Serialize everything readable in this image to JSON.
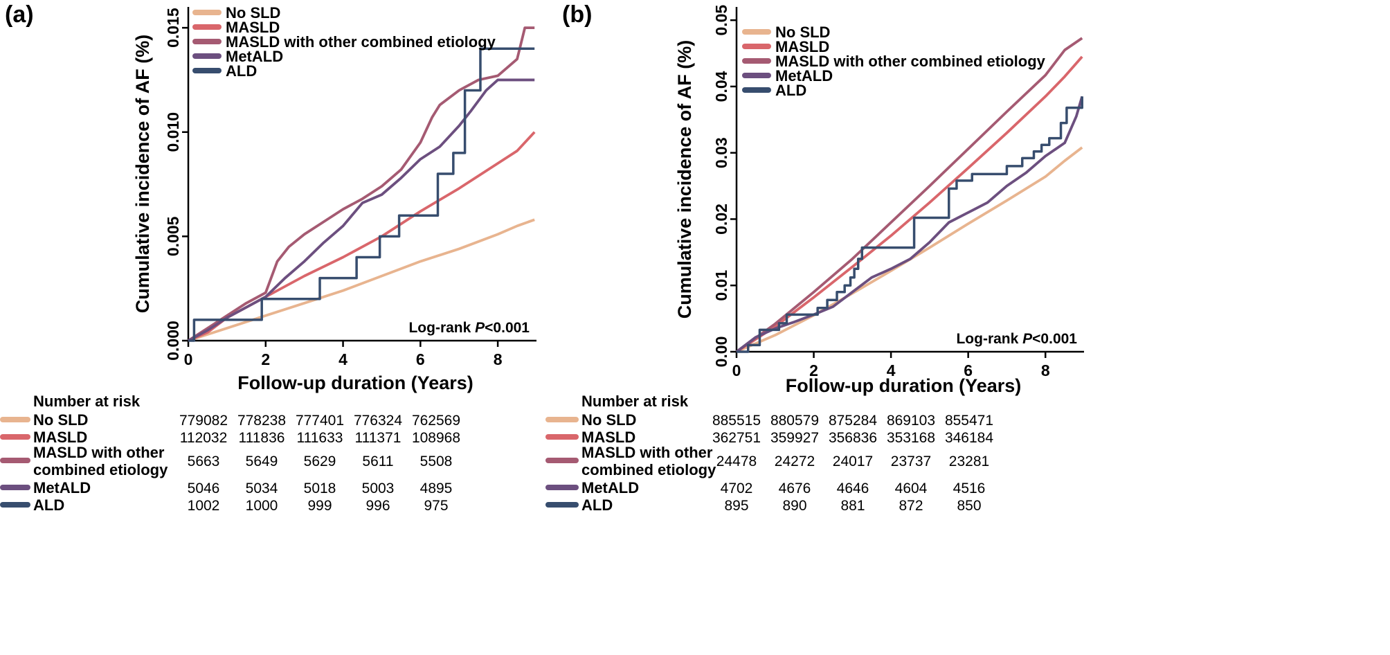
{
  "colors": {
    "No SLD": "#e8b48f",
    "MASLD": "#d9666b",
    "MASLD with other combined etiology": "#a55a72",
    "MetALD": "#6c4f7f",
    "ALD": "#374d6e"
  },
  "risk_title": "Number at risk",
  "chart_data": [
    {
      "id": "a",
      "panel_label": "(a)",
      "type": "line",
      "title": "",
      "xlabel": "Follow-up duration (Years)",
      "ylabel": "Cumulative incidence of AF (%)",
      "xlim": [
        0,
        9
      ],
      "ylim": [
        0,
        0.016
      ],
      "xticks": [
        0,
        2,
        4,
        6,
        8
      ],
      "xtick_labels": [
        "0",
        "2",
        "4",
        "6",
        "8"
      ],
      "yticks": [
        0,
        0.005,
        0.01,
        0.015
      ],
      "ytick_labels": [
        "0.000",
        "0.005",
        "0.010",
        "0.015"
      ],
      "annotation": {
        "prefix": "Log-rank ",
        "p": "P",
        "suffix": "<0.001"
      },
      "legend": [
        "No SLD",
        "MASLD",
        "MASLD with other combined etiology",
        "MetALD",
        "ALD"
      ],
      "series": [
        {
          "name": "No SLD",
          "step": false,
          "x": [
            0,
            1,
            2,
            3,
            4,
            5,
            6,
            7,
            8,
            8.5,
            8.95
          ],
          "y": [
            0,
            0.0006,
            0.0012,
            0.0018,
            0.0024,
            0.0031,
            0.0038,
            0.0044,
            0.0051,
            0.0055,
            0.0058
          ]
        },
        {
          "name": "MASLD",
          "step": false,
          "x": [
            0,
            0.5,
            1,
            2,
            3,
            4,
            5,
            6,
            7,
            8,
            8.5,
            8.8,
            8.95
          ],
          "y": [
            0,
            0.0004,
            0.0011,
            0.0021,
            0.0031,
            0.004,
            0.005,
            0.0062,
            0.0073,
            0.0085,
            0.0091,
            0.0097,
            0.01
          ]
        },
        {
          "name": "MASLD with other combined etiology",
          "step": false,
          "x": [
            0,
            0.5,
            1,
            1.5,
            2,
            2.3,
            2.6,
            3,
            3.5,
            4,
            4.5,
            5,
            5.5,
            6,
            6.3,
            6.5,
            7,
            7.5,
            8,
            8.5,
            8.7,
            8.95
          ],
          "y": [
            0,
            0.0006,
            0.0012,
            0.0018,
            0.0023,
            0.0038,
            0.0045,
            0.0051,
            0.0057,
            0.0063,
            0.0068,
            0.0074,
            0.0082,
            0.0095,
            0.0107,
            0.0113,
            0.012,
            0.0125,
            0.0127,
            0.0135,
            0.015,
            0.015
          ]
        },
        {
          "name": "MetALD",
          "step": false,
          "x": [
            0,
            0.5,
            1,
            1.5,
            2,
            2.5,
            3,
            3.5,
            4,
            4.5,
            5,
            5.5,
            6,
            6.5,
            7,
            7.3,
            7.7,
            8,
            8.95
          ],
          "y": [
            0,
            0.0005,
            0.0011,
            0.0016,
            0.0021,
            0.003,
            0.0038,
            0.0047,
            0.0055,
            0.0066,
            0.007,
            0.0078,
            0.0087,
            0.0093,
            0.0103,
            0.011,
            0.012,
            0.0125,
            0.0125
          ]
        },
        {
          "name": "ALD",
          "step": true,
          "x": [
            0,
            0.15,
            1.9,
            3.4,
            4.35,
            4.95,
            5.45,
            6.45,
            6.85,
            7.15,
            7.55,
            8.95
          ],
          "y": [
            0,
            0.001,
            0.002,
            0.003,
            0.004,
            0.005,
            0.006,
            0.008,
            0.009,
            0.012,
            0.014,
            0.014
          ]
        }
      ],
      "risk_table": {
        "times": [
          0,
          2,
          4,
          6,
          8
        ],
        "rows": [
          {
            "group": "No SLD",
            "label_lines": [
              "No SLD"
            ],
            "values": [
              "779082",
              "778238",
              "777401",
              "776324",
              "762569"
            ]
          },
          {
            "group": "MASLD",
            "label_lines": [
              "MASLD"
            ],
            "values": [
              "112032",
              "111836",
              "111633",
              "111371",
              "108968"
            ]
          },
          {
            "group": "MASLD with other combined etiology",
            "label_lines": [
              "MASLD with other",
              "combined etiology"
            ],
            "values": [
              "5663",
              "5649",
              "5629",
              "5611",
              "5508"
            ]
          },
          {
            "group": "MetALD",
            "label_lines": [
              "MetALD"
            ],
            "values": [
              "5046",
              "5034",
              "5018",
              "5003",
              "4895"
            ]
          },
          {
            "group": "ALD",
            "label_lines": [
              "ALD"
            ],
            "values": [
              "1002",
              "1000",
              "999",
              "996",
              "975"
            ]
          }
        ]
      }
    },
    {
      "id": "b",
      "panel_label": "(b)",
      "type": "line",
      "title": "",
      "xlabel": "Follow-up duration (Years)",
      "ylabel": "Cumulative incidence of AF (%)",
      "xlim": [
        0,
        9
      ],
      "ylim": [
        0,
        0.052
      ],
      "xticks": [
        0,
        2,
        4,
        6,
        8
      ],
      "xtick_labels": [
        "0",
        "2",
        "4",
        "6",
        "8"
      ],
      "yticks": [
        0,
        0.01,
        0.02,
        0.03,
        0.04,
        0.05
      ],
      "ytick_labels": [
        "0.00",
        "0.01",
        "0.02",
        "0.03",
        "0.04",
        "0.05"
      ],
      "annotation": {
        "prefix": "Log-rank ",
        "p": "P",
        "suffix": "<0.001"
      },
      "legend": [
        "No SLD",
        "MASLD",
        "MASLD with other combined etiology",
        "MetALD",
        "ALD"
      ],
      "series": [
        {
          "name": "No SLD",
          "step": false,
          "x": [
            0,
            1,
            2,
            3,
            4,
            5,
            6,
            7,
            8,
            8.5,
            8.95
          ],
          "y": [
            0,
            0.0025,
            0.0055,
            0.0088,
            0.0122,
            0.0157,
            0.0193,
            0.0228,
            0.0264,
            0.0288,
            0.0308
          ]
        },
        {
          "name": "MASLD",
          "step": false,
          "x": [
            0,
            1,
            2,
            3,
            4,
            5,
            6,
            7,
            8,
            8.5,
            8.95
          ],
          "y": [
            0,
            0.0038,
            0.0082,
            0.0128,
            0.0175,
            0.0225,
            0.0277,
            0.033,
            0.0385,
            0.0415,
            0.0445
          ]
        },
        {
          "name": "MASLD with other combined etiology",
          "step": false,
          "x": [
            0,
            1,
            2,
            3,
            4,
            5,
            6,
            7,
            8,
            8.5,
            8.95
          ],
          "y": [
            0,
            0.0042,
            0.009,
            0.014,
            0.0195,
            0.025,
            0.0306,
            0.0362,
            0.0417,
            0.0455,
            0.0473
          ]
        },
        {
          "name": "MetALD",
          "step": false,
          "x": [
            0,
            0.5,
            1,
            1.5,
            2,
            2.5,
            3,
            3.5,
            4,
            4.5,
            5,
            5.5,
            6,
            6.5,
            7,
            7.5,
            8,
            8.5,
            8.8,
            8.95
          ],
          "y": [
            0,
            0.0022,
            0.0035,
            0.0045,
            0.0056,
            0.0068,
            0.009,
            0.0112,
            0.0125,
            0.014,
            0.0165,
            0.0195,
            0.021,
            0.0225,
            0.025,
            0.027,
            0.0295,
            0.0315,
            0.0355,
            0.0385
          ]
        },
        {
          "name": "ALD",
          "step": true,
          "x": [
            0,
            0.3,
            0.6,
            1.1,
            1.3,
            2.1,
            2.35,
            2.6,
            2.8,
            2.95,
            3.05,
            3.15,
            3.25,
            4.6,
            5.5,
            5.7,
            6.1,
            7.0,
            7.4,
            7.7,
            7.9,
            8.1,
            8.4,
            8.55,
            8.95
          ],
          "y": [
            0,
            0.001,
            0.0033,
            0.0043,
            0.0056,
            0.0066,
            0.0078,
            0.009,
            0.01,
            0.0112,
            0.0125,
            0.014,
            0.0157,
            0.0202,
            0.0246,
            0.0258,
            0.0268,
            0.028,
            0.0292,
            0.0302,
            0.0312,
            0.0322,
            0.0345,
            0.0368,
            0.0385
          ]
        }
      ],
      "risk_table": {
        "times": [
          0,
          2,
          4,
          6,
          8
        ],
        "rows": [
          {
            "group": "No SLD",
            "label_lines": [
              "No SLD"
            ],
            "values": [
              "885515",
              "880579",
              "875284",
              "869103",
              "855471"
            ]
          },
          {
            "group": "MASLD",
            "label_lines": [
              "MASLD"
            ],
            "values": [
              "362751",
              "359927",
              "356836",
              "353168",
              "346184"
            ]
          },
          {
            "group": "MASLD with other combined etiology",
            "label_lines": [
              "MASLD with other",
              "combined etiology"
            ],
            "values": [
              "24478",
              "24272",
              "24017",
              "23737",
              "23281"
            ]
          },
          {
            "group": "MetALD",
            "label_lines": [
              "MetALD"
            ],
            "values": [
              "4702",
              "4676",
              "4646",
              "4604",
              "4516"
            ]
          },
          {
            "group": "ALD",
            "label_lines": [
              "ALD"
            ],
            "values": [
              "895",
              "890",
              "881",
              "872",
              "850"
            ]
          }
        ]
      }
    }
  ]
}
